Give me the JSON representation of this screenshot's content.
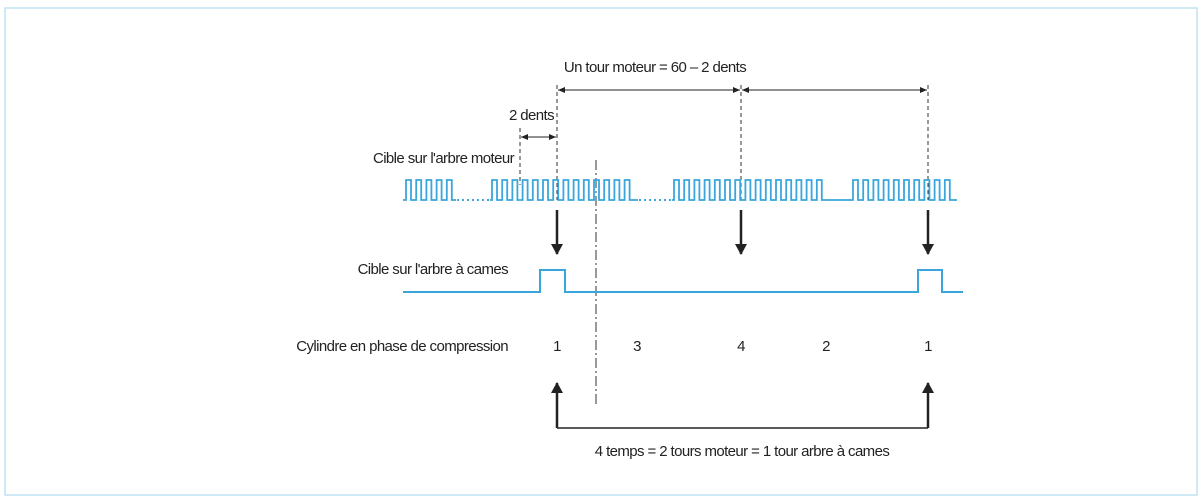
{
  "title": "Un tour moteur = 60 – 2 dents",
  "gap_label": "2 dents",
  "crank_label": "Cible sur l'arbre moteur",
  "cam_label": "Cible sur l'arbre à cames",
  "cylinder_label": "Cylindre en phase de compression",
  "cylinders": [
    "1",
    "3",
    "4",
    "2",
    "1"
  ],
  "footer": "4 temps = 2 tours moteur = 1 tour arbre à cames"
}
